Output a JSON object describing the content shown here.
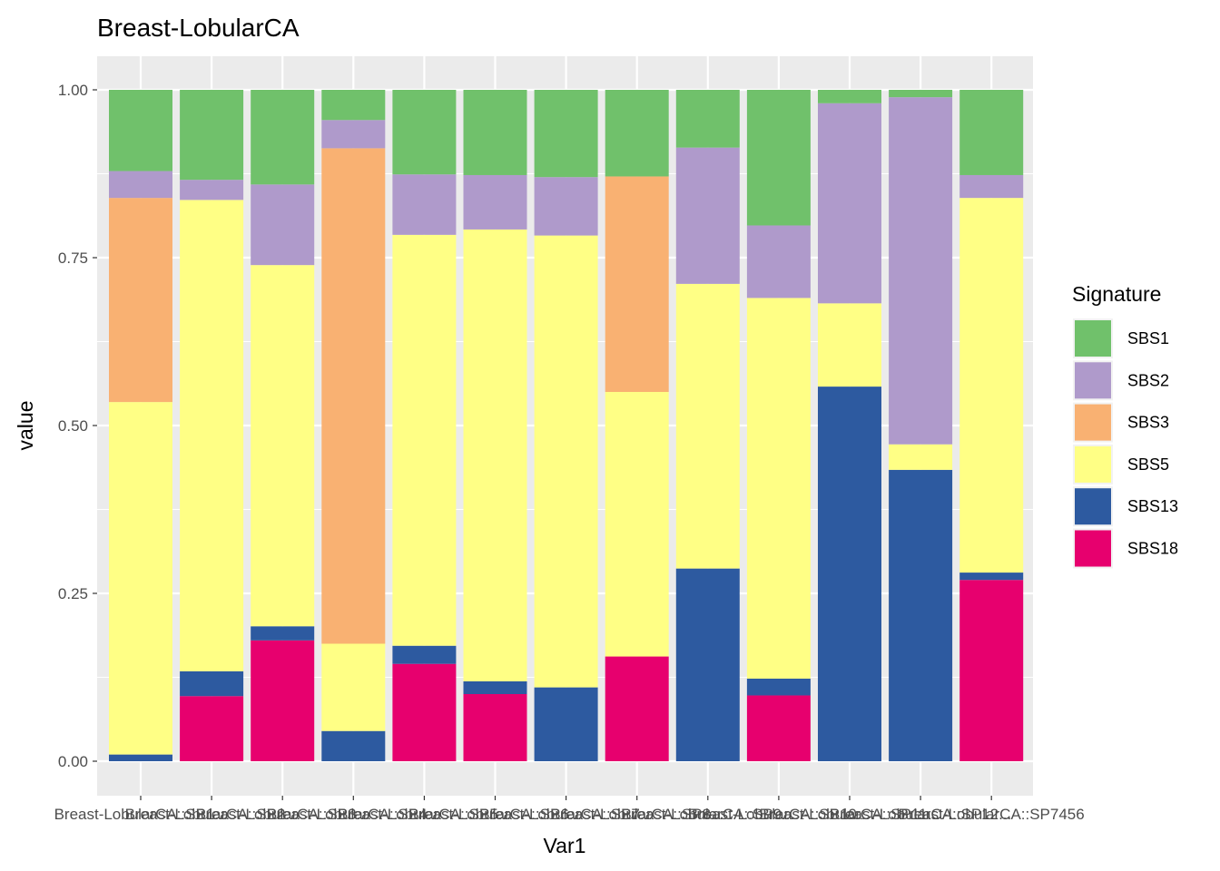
{
  "chart_data": {
    "type": "bar",
    "stacked": true,
    "title": "Breast-LobularCA",
    "xlabel": "Var1",
    "ylabel": "value",
    "ylim": [
      0,
      1
    ],
    "yticks": [
      "0.00",
      "0.25",
      "0.50",
      "0.75",
      "1.00"
    ],
    "grid": true,
    "legend_title": "Signature",
    "legend_position": "right",
    "categories": [
      "Breast-LobularCA::SP1...",
      "Breast-LobularCA::SP2...",
      "Breast-LobularCA::SP3...",
      "Breast-LobularCA::SP4...",
      "Breast-LobularCA::SP5...",
      "Breast-LobularCA::SP6...",
      "Breast-LobularCA::SP7...",
      "Breast-LobularCA::SP8...",
      "Breast-LobularCA::SP9...",
      "Breast-LobularCA::SP10...",
      "Breast-LobularCA::SP11...",
      "Breast-LobularCA::SP12...",
      "Breast-LobularCA::SP7456"
    ],
    "series": [
      {
        "name": "SBS18",
        "color": "#E7006E",
        "values": [
          0.0,
          0.097,
          0.18,
          0.0,
          0.145,
          0.1,
          0.0,
          0.156,
          0.0,
          0.098,
          0.0,
          0.0,
          0.27
        ]
      },
      {
        "name": "SBS13",
        "color": "#2D5AA0",
        "values": [
          0.01,
          0.037,
          0.021,
          0.045,
          0.027,
          0.019,
          0.11,
          0.0,
          0.287,
          0.025,
          0.558,
          0.434,
          0.011
        ]
      },
      {
        "name": "SBS5",
        "color": "#FFFF85",
        "values": [
          0.525,
          0.702,
          0.538,
          0.13,
          0.612,
          0.673,
          0.673,
          0.394,
          0.424,
          0.567,
          0.124,
          0.038,
          0.558
        ]
      },
      {
        "name": "SBS3",
        "color": "#F9B172",
        "values": [
          0.304,
          0.0,
          0.0,
          0.738,
          0.0,
          0.0,
          0.0,
          0.321,
          0.0,
          0.0,
          0.0,
          0.0,
          0.0
        ]
      },
      {
        "name": "SBS2",
        "color": "#AF9ACB",
        "values": [
          0.04,
          0.03,
          0.12,
          0.042,
          0.09,
          0.081,
          0.087,
          0.0,
          0.203,
          0.108,
          0.298,
          0.517,
          0.034
        ]
      },
      {
        "name": "SBS1",
        "color": "#70C16B",
        "values": [
          0.121,
          0.134,
          0.141,
          0.045,
          0.126,
          0.127,
          0.13,
          0.129,
          0.086,
          0.202,
          0.02,
          0.011,
          0.127
        ]
      }
    ],
    "legend_order": [
      "SBS1",
      "SBS2",
      "SBS3",
      "SBS5",
      "SBS13",
      "SBS18"
    ]
  }
}
